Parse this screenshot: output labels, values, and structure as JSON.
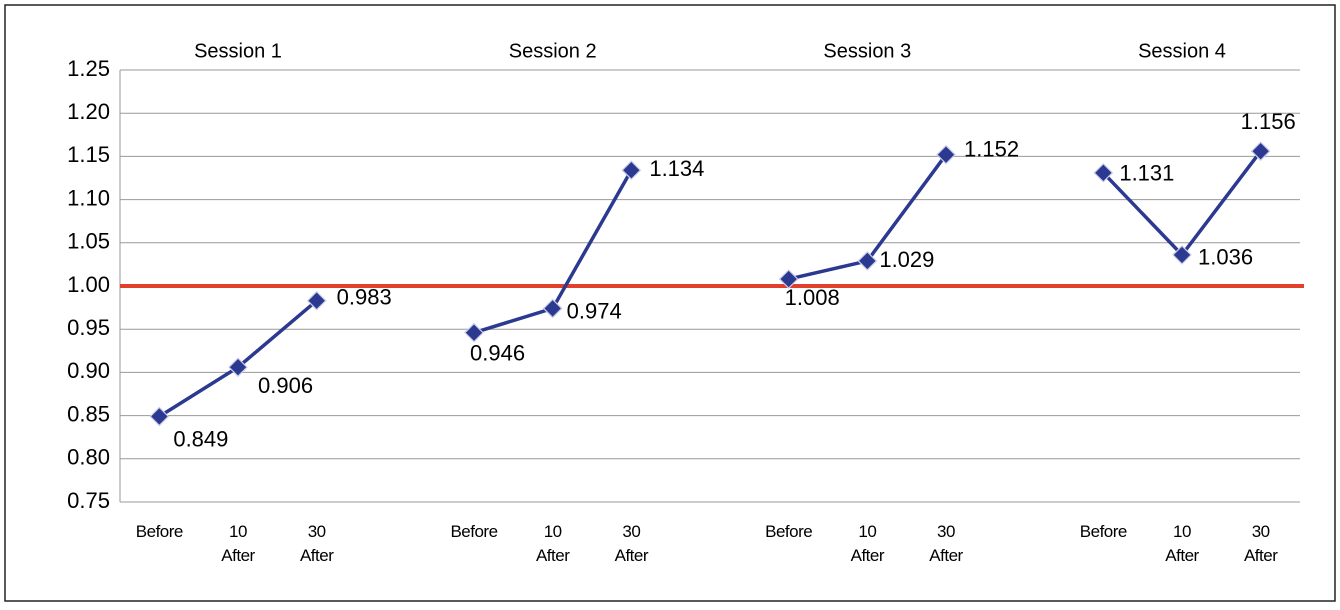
{
  "chart_data": {
    "type": "line",
    "groups": [
      {
        "name": "Session 1",
        "categories": [
          "Before",
          "10 After",
          "30 After"
        ],
        "values": [
          0.849,
          0.906,
          0.983
        ]
      },
      {
        "name": "Session 2",
        "categories": [
          "Before",
          "10 After",
          "30 After"
        ],
        "values": [
          0.946,
          0.974,
          1.134
        ]
      },
      {
        "name": "Session 3",
        "categories": [
          "Before",
          "10 After",
          "30 After"
        ],
        "values": [
          1.008,
          1.029,
          1.152
        ]
      },
      {
        "name": "Session 4",
        "categories": [
          "Before",
          "10 After",
          "30 After"
        ],
        "values": [
          1.131,
          1.036,
          1.156
        ]
      }
    ],
    "color": "#2b3990",
    "reference_line": {
      "value": 1.0,
      "color": "#e0402c"
    },
    "ylim": [
      0.75,
      1.25
    ],
    "yticks": [
      {
        "value": 0.75,
        "label": "0.75"
      },
      {
        "value": 0.8,
        "label": "0.80"
      },
      {
        "value": 0.85,
        "label": "0.85"
      },
      {
        "value": 0.9,
        "label": "0.90"
      },
      {
        "value": 0.95,
        "label": "0.95"
      },
      {
        "value": 1.0,
        "label": "1.00"
      },
      {
        "value": 1.05,
        "label": "1.05"
      },
      {
        "value": 1.1,
        "label": "1.10"
      },
      {
        "value": 1.15,
        "label": "1.15"
      },
      {
        "value": 1.2,
        "label": "1.20"
      },
      {
        "value": 1.25,
        "label": "1.25"
      }
    ],
    "grid": true
  }
}
